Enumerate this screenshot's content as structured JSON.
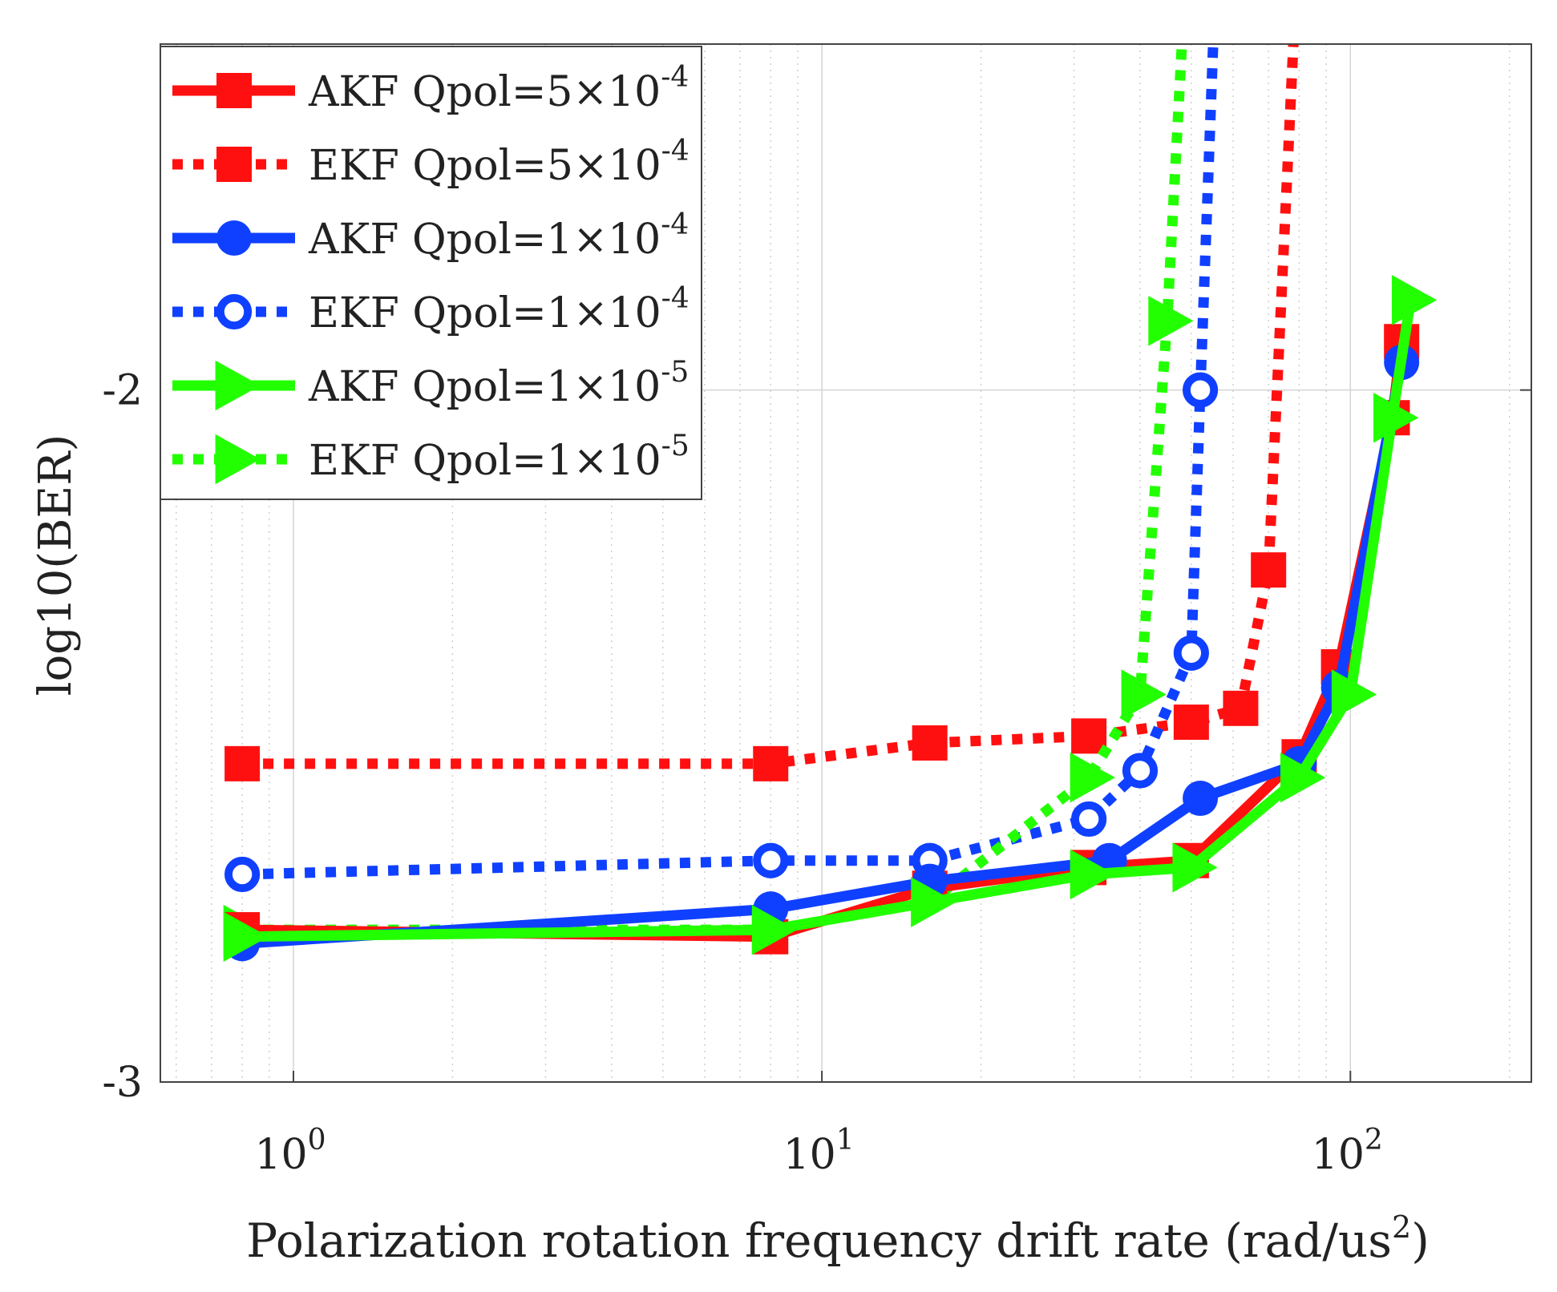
{
  "chart_data": {
    "type": "line",
    "xscale": "log",
    "xlabel": "Polarization rotation frequency drift rate (rad/us",
    "xlabel_sup": "2",
    "xlabel_tail": ")",
    "ylabel": "log10(BER)",
    "xlim": [
      0.56,
      220
    ],
    "ylim": [
      -3,
      -1.5
    ],
    "yticks": [
      {
        "value": -2,
        "label": "-2"
      },
      {
        "value": -3,
        "label": "-3"
      }
    ],
    "xticks": [
      {
        "value": 1,
        "base": "10",
        "exp": "0"
      },
      {
        "value": 10,
        "base": "10",
        "exp": "1"
      },
      {
        "value": 100,
        "base": "10",
        "exp": "2"
      }
    ],
    "series": [
      {
        "name": "AKF Qpol=5×10",
        "exp": "-4",
        "color": "#ff1010",
        "dash": "solid",
        "marker": "square",
        "x": [
          0.8,
          8,
          16,
          32,
          50,
          80,
          95,
          120,
          125
        ],
        "y": [
          -2.78,
          -2.79,
          -2.72,
          -2.69,
          -2.68,
          -2.53,
          -2.4,
          -2.04,
          -1.93
        ]
      },
      {
        "name": "EKF Qpol=5×10",
        "exp": "-4",
        "color": "#ff1010",
        "dash": "dotted",
        "marker": "square",
        "x": [
          0.8,
          8,
          16,
          32,
          50,
          62,
          70,
          78
        ],
        "y": [
          -2.54,
          -2.54,
          -2.51,
          -2.5,
          -2.48,
          -2.46,
          -2.26,
          -1.5
        ]
      },
      {
        "name": "AKF Qpol=1×10",
        "exp": "-4",
        "color": "#1040ff",
        "dash": "solid",
        "marker": "circle",
        "x": [
          0.8,
          8,
          16,
          35,
          52,
          80,
          95,
          125
        ],
        "y": [
          -2.8,
          -2.75,
          -2.71,
          -2.68,
          -2.59,
          -2.54,
          -2.43,
          -1.96
        ]
      },
      {
        "name": "EKF Qpol=1×10",
        "exp": "-4",
        "color": "#1040ff",
        "dash": "dotted",
        "marker": "circle-open",
        "x": [
          0.8,
          8,
          16,
          32,
          40,
          50,
          52,
          55
        ],
        "y": [
          -2.7,
          -2.68,
          -2.68,
          -2.62,
          -2.55,
          -2.38,
          -2.0,
          -1.5
        ]
      },
      {
        "name": "AKF Qpol=1×10",
        "exp": "-5",
        "color": "#22ff00",
        "dash": "solid",
        "marker": "triangle-right",
        "x": [
          0.8,
          8,
          16,
          32,
          50,
          80,
          100,
          120,
          130
        ],
        "y": [
          -2.79,
          -2.78,
          -2.74,
          -2.7,
          -2.69,
          -2.56,
          -2.44,
          -2.04,
          -1.87
        ]
      },
      {
        "name": "EKF Qpol=1×10",
        "exp": "-5",
        "color": "#22ff00",
        "dash": "dotted",
        "marker": "triangle-right",
        "x": [
          0.8,
          8,
          16,
          32,
          40,
          45,
          48
        ],
        "y": [
          -2.78,
          -2.78,
          -2.74,
          -2.56,
          -2.44,
          -1.9,
          -1.5
        ]
      }
    ]
  }
}
